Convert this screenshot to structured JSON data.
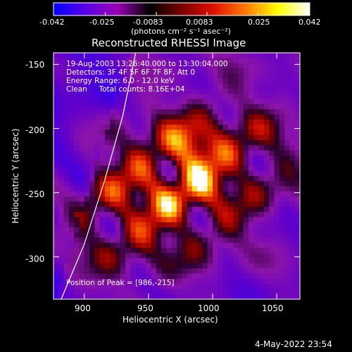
{
  "colorbar": {
    "tick_labels": [
      "-0.042",
      "-0.025",
      "-0.0083",
      "0.0083",
      "0.025",
      "0.042"
    ],
    "unit_label": "(photons cm⁻² s⁻¹ asec⁻²)",
    "range": [
      -0.042,
      0.042
    ],
    "colors": [
      "#0000ff",
      "#5a00e6",
      "#9a00b4",
      "#000000",
      "#7a0000",
      "#e01000",
      "#ff7a00",
      "#ffff00",
      "#ffffff"
    ]
  },
  "chart_data": {
    "type": "heatmap",
    "title": "Reconstructed RHESSI Image",
    "xlabel": "Heliocentric X (arcsec)",
    "ylabel": "Heliocentric Y (arcsec)",
    "xlim": [
      876,
      1068
    ],
    "ylim": [
      -333,
      -141
    ],
    "x_ticks": [
      900,
      950,
      1000,
      1050
    ],
    "y_ticks": [
      -150,
      -200,
      -250,
      -300
    ],
    "peak_position": [
      986,
      -215
    ],
    "limb_curve": [
      [
        882,
        -333
      ],
      [
        900,
        -290
      ],
      [
        916,
        -240
      ],
      [
        930,
        -190
      ],
      [
        940,
        -141
      ]
    ],
    "annotations": [
      "19-Aug-2003 13:26:40.000 to 13:30:04.000",
      "Detectors: 3F 4F 5F 6F 7F 8F, Att 0",
      "Energy Range: 6.0 - 12.0 keV",
      "Clean     Total counts: 8.16E+04"
    ],
    "peak_label": "Position of Peak = [986,-215]"
  },
  "footer": {
    "date": "4-May-2022 23:54"
  }
}
